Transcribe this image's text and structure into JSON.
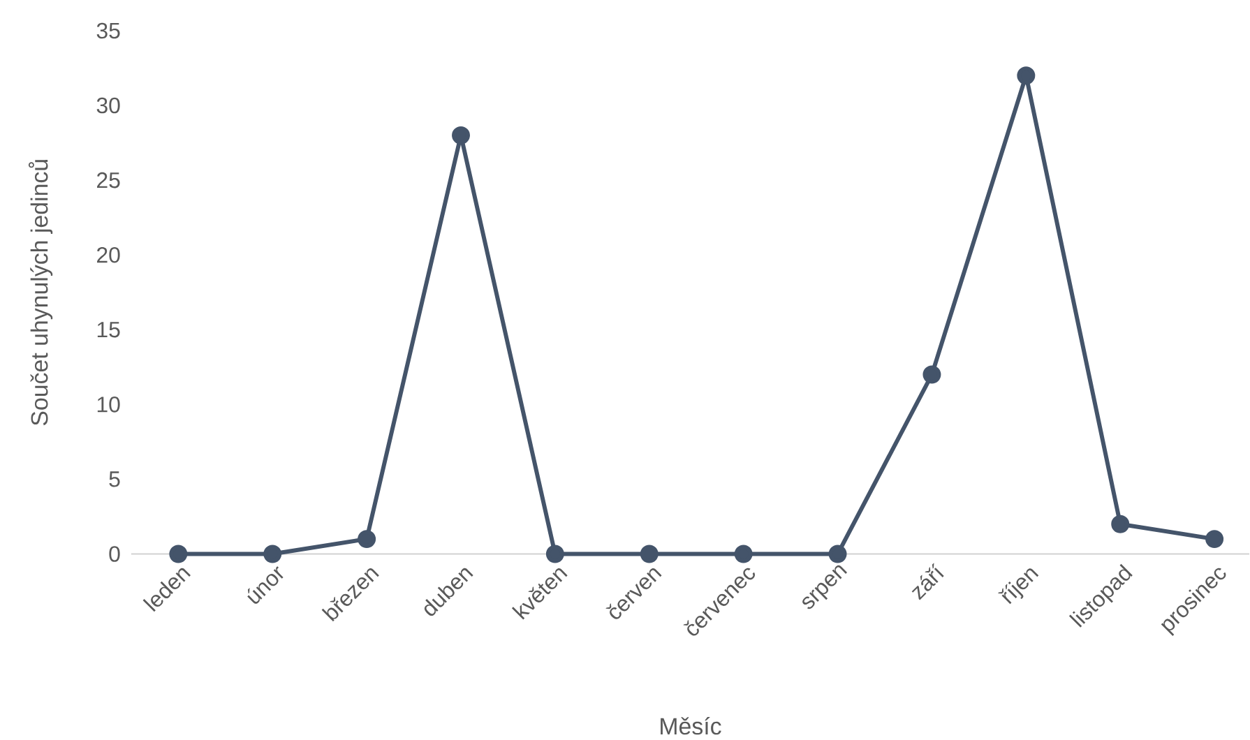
{
  "chart_data": {
    "type": "line",
    "xlabel": "Měsíc",
    "ylabel": "Součet uhynulých jedinců",
    "categories": [
      "leden",
      "únor",
      "březen",
      "duben",
      "květen",
      "červen",
      "červenec",
      "srpen",
      "září",
      "říjen",
      "listopad",
      "prosinec"
    ],
    "values": [
      0,
      0,
      1,
      28,
      0,
      0,
      0,
      0,
      12,
      32,
      2,
      1
    ],
    "color": "#44546a",
    "marker": "circle",
    "line_style": "solid",
    "ylim": [
      0,
      35
    ],
    "yticks": [
      0,
      5,
      10,
      15,
      20,
      25,
      30,
      35
    ]
  }
}
